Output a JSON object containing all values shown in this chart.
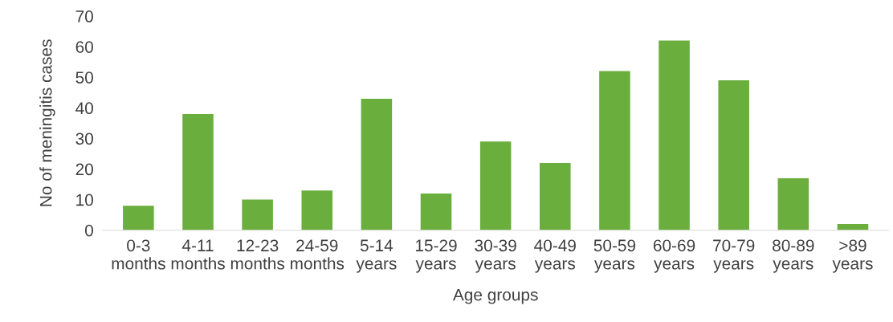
{
  "chart_data": {
    "type": "bar",
    "xlabel": "Age groups",
    "ylabel": "No of meningitis cases",
    "categories": [
      "0-3\nmonths",
      "4-11\nmonths",
      "12-23\nmonths",
      "24-59\nmonths",
      "5-14\nyears",
      "15-29\nyears",
      "30-39\nyears",
      "40-49\nyears",
      "50-59\nyears",
      "60-69\nyears",
      "70-79\nyears",
      "80-89\nyears",
      ">89\nyears"
    ],
    "values": [
      8,
      38,
      10,
      13,
      43,
      12,
      29,
      22,
      52,
      62,
      49,
      17,
      2
    ],
    "color": "#6aae3e",
    "ylim": [
      0,
      70
    ],
    "yticks": [
      0,
      10,
      20,
      30,
      40,
      50,
      60,
      70
    ],
    "grid": false
  }
}
